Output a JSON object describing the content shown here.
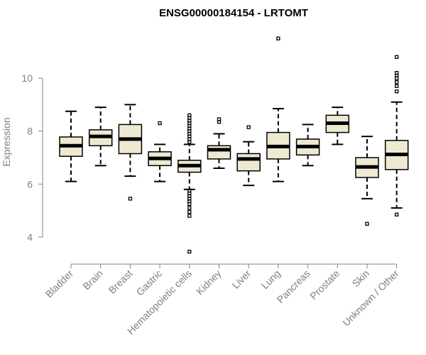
{
  "chart_data": {
    "type": "boxplot",
    "title": "ENSG00000184154 - LRTOMT",
    "xlabel": "",
    "ylabel": "Expression",
    "ylim": [
      3.3,
      11.8
    ],
    "yticks": [
      4,
      6,
      8,
      10
    ],
    "grid": false,
    "box_fill": "#efe9d2",
    "categories": [
      "Bladder",
      "Brain",
      "Breast",
      "Gastric",
      "Hematopoietic cells",
      "Kidney",
      "Liver",
      "Lung",
      "Pancreas",
      "Prostate",
      "Skin",
      "Unknown / Other"
    ],
    "boxes": [
      {
        "category": "Bladder",
        "whisker_low": 6.1,
        "q1": 7.05,
        "median": 7.45,
        "q3": 7.78,
        "whisker_high": 8.75,
        "outliers": []
      },
      {
        "category": "Brain",
        "whisker_low": 6.7,
        "q1": 7.45,
        "median": 7.8,
        "q3": 8.05,
        "whisker_high": 8.9,
        "outliers": []
      },
      {
        "category": "Breast",
        "whisker_low": 6.3,
        "q1": 7.15,
        "median": 7.7,
        "q3": 8.25,
        "whisker_high": 9.0,
        "outliers": [
          5.45
        ]
      },
      {
        "category": "Gastric",
        "whisker_low": 6.1,
        "q1": 6.7,
        "median": 6.97,
        "q3": 7.22,
        "whisker_high": 7.5,
        "outliers": [
          8.3
        ]
      },
      {
        "category": "Hematopoietic cells",
        "whisker_low": 5.8,
        "q1": 6.45,
        "median": 6.7,
        "q3": 6.9,
        "whisker_high": 7.5,
        "outliers": [
          3.45,
          4.8,
          4.95,
          5.1,
          5.25,
          5.35,
          5.45,
          5.55,
          5.65,
          5.75,
          7.6,
          7.7,
          7.8,
          7.9,
          8.0,
          8.1,
          8.2,
          8.3,
          8.4,
          8.5,
          8.6
        ]
      },
      {
        "category": "Kidney",
        "whisker_low": 6.6,
        "q1": 6.95,
        "median": 7.3,
        "q3": 7.45,
        "whisker_high": 7.9,
        "outliers": [
          8.35,
          8.45
        ]
      },
      {
        "category": "Liver",
        "whisker_low": 5.95,
        "q1": 6.5,
        "median": 6.95,
        "q3": 7.15,
        "whisker_high": 7.6,
        "outliers": [
          8.15
        ]
      },
      {
        "category": "Lung",
        "whisker_low": 6.1,
        "q1": 6.95,
        "median": 7.42,
        "q3": 7.95,
        "whisker_high": 8.85,
        "outliers": [
          11.5
        ]
      },
      {
        "category": "Pancreas",
        "whisker_low": 6.7,
        "q1": 7.1,
        "median": 7.42,
        "q3": 7.7,
        "whisker_high": 8.25,
        "outliers": []
      },
      {
        "category": "Prostate",
        "whisker_low": 7.5,
        "q1": 7.95,
        "median": 8.3,
        "q3": 8.6,
        "whisker_high": 8.9,
        "outliers": []
      },
      {
        "category": "Skin",
        "whisker_low": 5.45,
        "q1": 6.25,
        "median": 6.65,
        "q3": 7.0,
        "whisker_high": 7.8,
        "outliers": [
          4.5
        ]
      },
      {
        "category": "Unknown / Other",
        "whisker_low": 5.1,
        "q1": 6.55,
        "median": 7.12,
        "q3": 7.65,
        "whisker_high": 9.1,
        "outliers": [
          4.85,
          9.5,
          9.7,
          9.85,
          10.0,
          10.1,
          10.2,
          10.8
        ]
      }
    ]
  }
}
